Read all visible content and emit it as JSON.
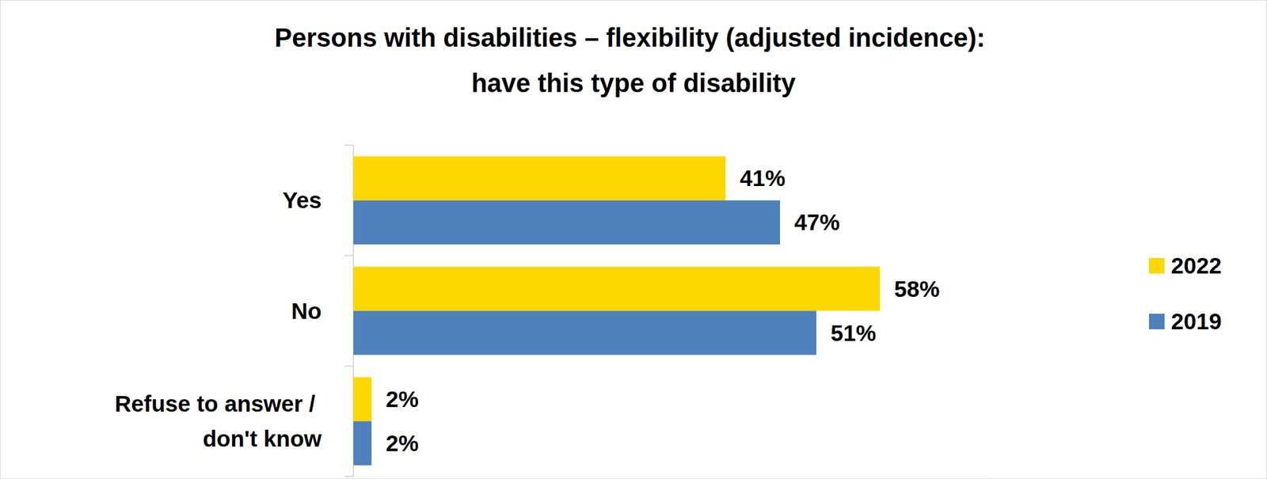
{
  "chart_data": {
    "type": "bar",
    "orientation": "horizontal",
    "title": "Persons with disabilities – flexibility (adjusted incidence): have this type of disability",
    "categories": [
      "Yes",
      "No",
      "Refuse to answer / don't know"
    ],
    "series": [
      {
        "name": "2022",
        "color": "#FFD700",
        "values": [
          41,
          58,
          2
        ],
        "value_labels": [
          "41%",
          "58%",
          "2%"
        ]
      },
      {
        "name": "2019",
        "color": "#4F81BD",
        "values": [
          47,
          51,
          2
        ],
        "value_labels": [
          "47%",
          "51%",
          "2%"
        ]
      }
    ],
    "xlim": [
      0,
      70
    ],
    "data_labels": true,
    "tick_labels": "y",
    "legend": "right",
    "grid": false
  }
}
